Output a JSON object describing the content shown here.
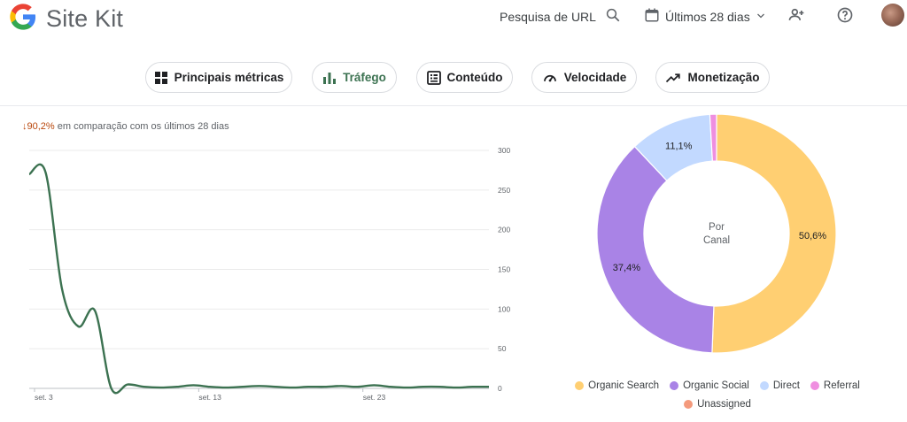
{
  "header": {
    "app_name": "Site Kit",
    "url_search_label": "Pesquisa de URL",
    "date_range_label": "Últimos 28 dias"
  },
  "tabs": [
    {
      "label": "Principais métricas",
      "icon": "grid-icon",
      "active": false
    },
    {
      "label": "Tráfego",
      "icon": "bar-chart-icon",
      "active": true
    },
    {
      "label": "Conteúdo",
      "icon": "content-icon",
      "active": false
    },
    {
      "label": "Velocidade",
      "icon": "speedometer-icon",
      "active": false
    },
    {
      "label": "Monetização",
      "icon": "trending-up-icon",
      "active": false
    }
  ],
  "comparison": {
    "change": "90,2%",
    "text": "em comparação com os últimos 28 dias"
  },
  "chart_data": [
    {
      "type": "line",
      "x_tick_labels": [
        "set. 3",
        "set. 13",
        "set. 23"
      ],
      "y_ticks": [
        0,
        50,
        100,
        150,
        200,
        250,
        300
      ],
      "ylim": [
        0,
        300
      ],
      "series": [
        {
          "color": "#3c7251",
          "x": [
            0,
            1,
            2,
            3,
            4,
            5,
            6,
            7,
            8,
            9,
            10,
            11,
            12,
            13,
            14,
            15,
            16,
            17,
            18,
            19,
            20,
            21,
            22,
            23,
            24,
            25,
            26,
            27,
            28
          ],
          "values": [
            270,
            272,
            125,
            78,
            98,
            0,
            5,
            2,
            1,
            2,
            4,
            2,
            1,
            2,
            3,
            2,
            1,
            2,
            2,
            3,
            2,
            4,
            2,
            1,
            2,
            2,
            1,
            2,
            2
          ]
        }
      ],
      "grid": true
    },
    {
      "type": "pie",
      "center_label": "Por Canal",
      "slices": [
        {
          "label": "Organic Search",
          "value": 50.6,
          "display": "50,6%",
          "color": "#ffcf72"
        },
        {
          "label": "Organic Social",
          "value": 37.4,
          "display": "37,4%",
          "color": "#a983e6"
        },
        {
          "label": "Direct",
          "value": 11.1,
          "display": "11,1%",
          "color": "#c2d9ff"
        },
        {
          "label": "Referral",
          "value": 0.9,
          "display": "",
          "color": "#ef8fe0"
        },
        {
          "label": "Unassigned",
          "value": 0.0,
          "display": "",
          "color": "#f49a7c"
        }
      ]
    }
  ],
  "legend": {
    "row1": [
      "Organic Search",
      "Organic Social",
      "Direct",
      "Referral"
    ],
    "row2": [
      "Unassigned"
    ]
  }
}
